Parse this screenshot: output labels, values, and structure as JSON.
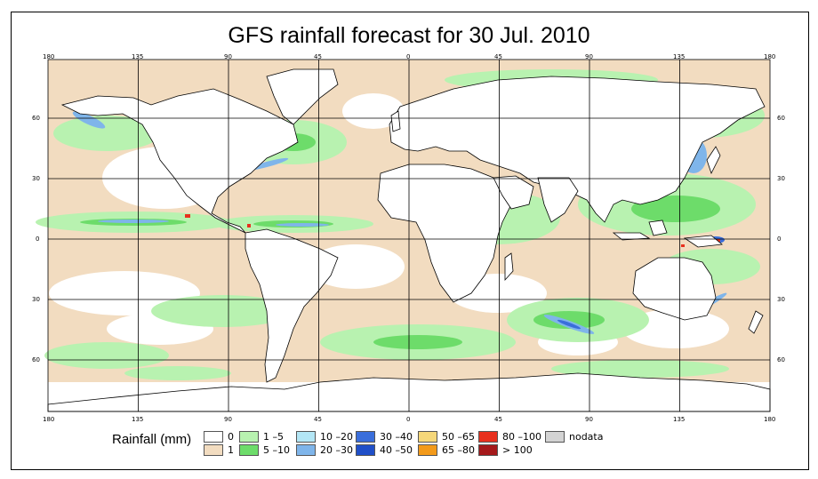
{
  "title": "GFS rainfall forecast for 30 Jul. 2010",
  "axes": {
    "top_lon": [
      "180",
      "135",
      "90",
      "45",
      "0",
      "45",
      "90",
      "135",
      "180"
    ],
    "bottom_lon": [
      "180",
      "135",
      "90",
      "45",
      "0",
      "45",
      "90",
      "135",
      "180"
    ],
    "left_lat": [
      "60",
      "30",
      "0",
      "30",
      "60"
    ],
    "right_lat": [
      "60",
      "30",
      "0",
      "30",
      "60"
    ]
  },
  "legend": {
    "title": "Rainfall (mm)",
    "items": [
      {
        "label": "0",
        "color": "#ffffff"
      },
      {
        "label": "1",
        "color": "#f2dcc0"
      },
      {
        "label": "1 –5",
        "color": "#b8f2b0"
      },
      {
        "label": "5 –10",
        "color": "#6ddc6a"
      },
      {
        "label": "10 –20",
        "color": "#b3e6f5"
      },
      {
        "label": "20 –30",
        "color": "#7fb5ea"
      },
      {
        "label": "30 –40",
        "color": "#3a6edb"
      },
      {
        "label": "40 –50",
        "color": "#1f4fc8"
      },
      {
        "label": "50 –65",
        "color": "#f5d77a"
      },
      {
        "label": "65 –80",
        "color": "#f39a1a"
      },
      {
        "label": "80 –100",
        "color": "#e8301e"
      },
      {
        "label": "> 100",
        "color": "#a5191b"
      },
      {
        "label": "nodata",
        "color": "#d3d3d3"
      }
    ]
  },
  "colors": {
    "ocean_base": "#f2dcc0",
    "land": "#ffffff",
    "rain_light": "#b8f2b0",
    "rain_mod": "#6ddc6a",
    "rain_blue": "#7fb5ea",
    "rain_heavy": "#3a6edb",
    "rain_red": "#e8301e",
    "grid": "#000000"
  }
}
